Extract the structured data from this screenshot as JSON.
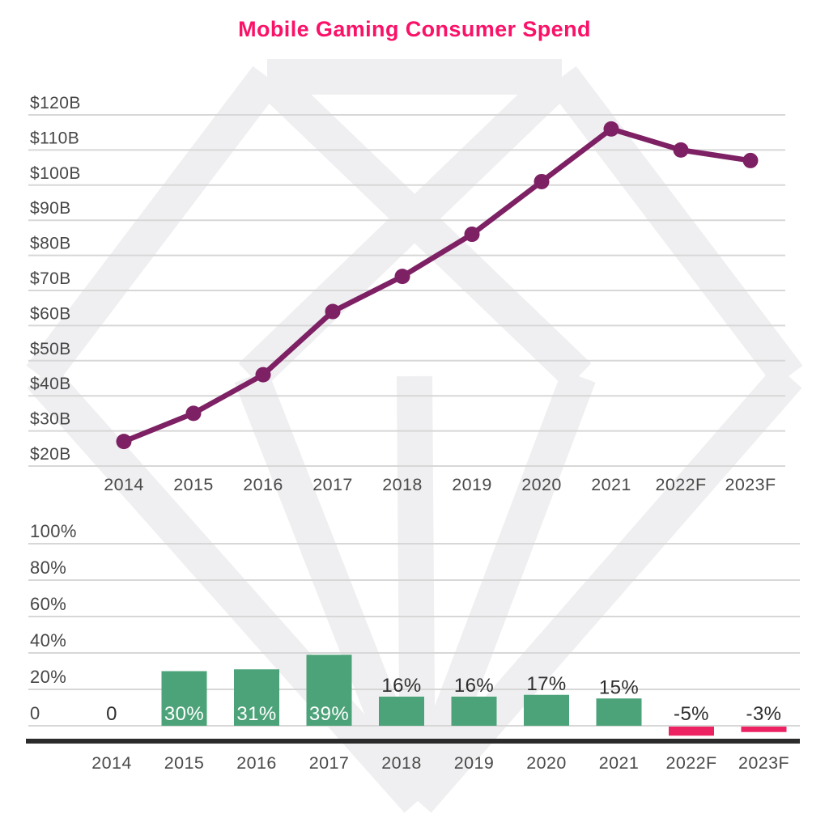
{
  "title": "Mobile Gaming Consumer Spend",
  "watermark_icon": "diamond-gem-watermark",
  "colors": {
    "title": "#fa1168",
    "line": "#7d2064",
    "marker": "#7d2064",
    "bar_positive": "#4da379",
    "bar_negative": "#ec2263",
    "gridline": "#d7d7d7",
    "axis_line": "#2b2b2b",
    "tick_label": "#474747",
    "x_label": "#4a4a4a",
    "bar_label_light": "#ffffff",
    "bar_label_dark": "#2e2e2e",
    "watermark": "#efeff1"
  },
  "chart_data": [
    {
      "type": "line",
      "name": "mobile-gaming-consumer-spend",
      "title": "Mobile Gaming Consumer Spend",
      "categories": [
        "2014",
        "2015",
        "2016",
        "2017",
        "2018",
        "2019",
        "2020",
        "2021",
        "2022F",
        "2023F"
      ],
      "values": [
        27,
        35,
        46,
        64,
        74,
        86,
        101,
        116,
        110,
        107
      ],
      "unit": "$B",
      "ylim": [
        20,
        120
      ],
      "ytick_values": [
        120,
        110,
        100,
        90,
        80,
        70,
        60,
        50,
        40,
        30,
        20
      ],
      "ytick_labels": [
        "$120B",
        "$110B",
        "$100B",
        "$90B",
        "$80B",
        "$70B",
        "$60B",
        "$50B",
        "$40B",
        "$30B",
        "$20B"
      ],
      "grid": true,
      "legend": "none",
      "marker": "circle"
    },
    {
      "type": "bar",
      "name": "yoy-growth-percent",
      "title": "",
      "categories": [
        "2014",
        "2015",
        "2016",
        "2017",
        "2018",
        "2019",
        "2020",
        "2021",
        "2022F",
        "2023F"
      ],
      "values": [
        0,
        30,
        31,
        39,
        16,
        16,
        17,
        15,
        -5,
        -3
      ],
      "bar_labels": [
        "0",
        "30%",
        "31%",
        "39%",
        "16%",
        "16%",
        "17%",
        "15%",
        "-5%",
        "-3%"
      ],
      "unit": "%",
      "ylim": [
        0,
        100
      ],
      "ytick_values": [
        100,
        80,
        60,
        40,
        20,
        0
      ],
      "ytick_labels": [
        "100%",
        "80%",
        "60%",
        "40%",
        "20%",
        "0"
      ],
      "grid": true,
      "legend": "none"
    }
  ]
}
